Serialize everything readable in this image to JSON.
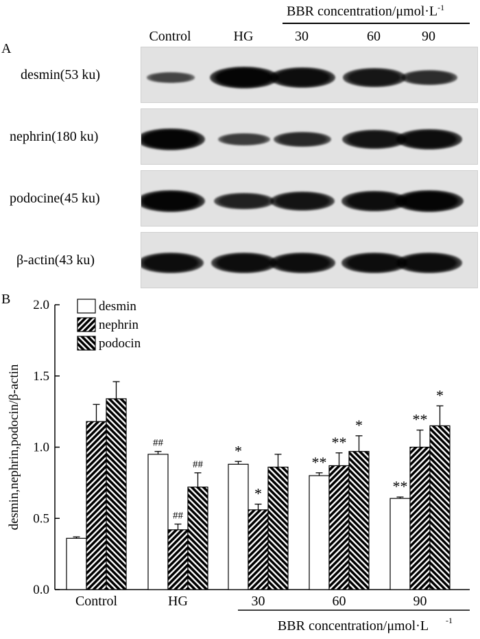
{
  "panel_a": {
    "letter": "A",
    "lanes": [
      "Control",
      "HG",
      "30",
      "60",
      "90"
    ],
    "bbr_header": "BBR concentration/μmol·L",
    "bbr_header_sup": "-1",
    "blots": [
      {
        "label": "desmin(53 ku)",
        "intensity": [
          0.35,
          1.0,
          0.92,
          0.82,
          0.6
        ]
      },
      {
        "label": "nephrin(180 ku)",
        "intensity": [
          1.0,
          0.45,
          0.65,
          0.85,
          0.9
        ]
      },
      {
        "label": "podocine(45 ku)",
        "intensity": [
          1.0,
          0.72,
          0.85,
          0.9,
          1.0
        ]
      },
      {
        "label": "β-actin(43 ku)",
        "intensity": [
          0.9,
          0.9,
          0.9,
          0.9,
          0.9
        ]
      }
    ]
  },
  "panel_b": {
    "letter": "B"
  },
  "chart_data": {
    "type": "bar",
    "ylabel": "desmin,nephrin,podocin/β-actin",
    "xlabel": "BBR concentration/μmol·L",
    "xlabel_sup": "-1",
    "ylim": [
      0,
      2.0
    ],
    "yticks": [
      "0.0",
      "0.5",
      "1.0",
      "1.5",
      "2.0"
    ],
    "categories": [
      "Control",
      "HG",
      "30",
      "60",
      "90"
    ],
    "legend_position": "top-left",
    "series": [
      {
        "name": "desmin",
        "values": [
          0.36,
          0.95,
          0.88,
          0.8,
          0.64
        ],
        "errors": [
          0.01,
          0.02,
          0.02,
          0.02,
          0.01
        ],
        "annotations": [
          "",
          "##",
          "*",
          "**",
          "**"
        ]
      },
      {
        "name": "nephrin",
        "values": [
          1.18,
          0.42,
          0.56,
          0.87,
          1.0
        ],
        "errors": [
          0.12,
          0.04,
          0.04,
          0.09,
          0.12
        ],
        "annotations": [
          "",
          "##",
          "*",
          "**",
          "**"
        ]
      },
      {
        "name": "podocin",
        "values": [
          1.34,
          0.72,
          0.86,
          0.97,
          1.15
        ],
        "errors": [
          0.12,
          0.1,
          0.09,
          0.11,
          0.14
        ],
        "annotations": [
          "",
          "##",
          "",
          "*",
          "*"
        ]
      }
    ]
  }
}
